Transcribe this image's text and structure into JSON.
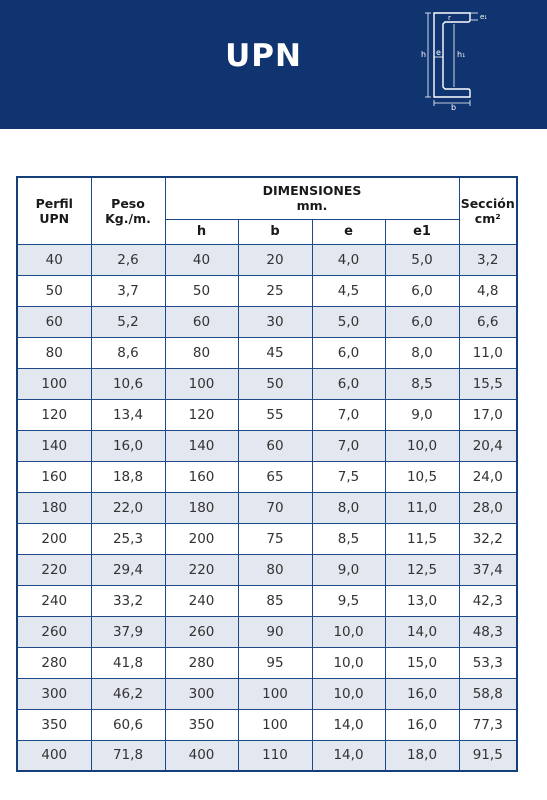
{
  "header": {
    "title": "UPN",
    "diagram_labels": {
      "e1": "e₁",
      "r": "r",
      "h": "h",
      "e": "e",
      "h1": "h₁",
      "b": "b"
    }
  },
  "table": {
    "col_perfil_line1": "Perfil",
    "col_perfil_line2": "UPN",
    "col_peso_line1": "Peso",
    "col_peso_line2": "Kg./m.",
    "dimensiones_line1": "DIMENSIONES",
    "dimensiones_line2": "mm.",
    "col_seccion_line1": "Sección",
    "col_seccion_line2": "cm²",
    "sub_h": "h",
    "sub_b": "b",
    "sub_e": "e",
    "sub_e1": "e1",
    "rows": [
      [
        "40",
        "2,6",
        "40",
        "20",
        "4,0",
        "5,0",
        "3,2"
      ],
      [
        "50",
        "3,7",
        "50",
        "25",
        "4,5",
        "6,0",
        "4,8"
      ],
      [
        "60",
        "5,2",
        "60",
        "30",
        "5,0",
        "6,0",
        "6,6"
      ],
      [
        "80",
        "8,6",
        "80",
        "45",
        "6,0",
        "8,0",
        "11,0"
      ],
      [
        "100",
        "10,6",
        "100",
        "50",
        "6,0",
        "8,5",
        "15,5"
      ],
      [
        "120",
        "13,4",
        "120",
        "55",
        "7,0",
        "9,0",
        "17,0"
      ],
      [
        "140",
        "16,0",
        "140",
        "60",
        "7,0",
        "10,0",
        "20,4"
      ],
      [
        "160",
        "18,8",
        "160",
        "65",
        "7,5",
        "10,5",
        "24,0"
      ],
      [
        "180",
        "22,0",
        "180",
        "70",
        "8,0",
        "11,0",
        "28,0"
      ],
      [
        "200",
        "25,3",
        "200",
        "75",
        "8,5",
        "11,5",
        "32,2"
      ],
      [
        "220",
        "29,4",
        "220",
        "80",
        "9,0",
        "12,5",
        "37,4"
      ],
      [
        "240",
        "33,2",
        "240",
        "85",
        "9,5",
        "13,0",
        "42,3"
      ],
      [
        "260",
        "37,9",
        "260",
        "90",
        "10,0",
        "14,0",
        "48,3"
      ],
      [
        "280",
        "41,8",
        "280",
        "95",
        "10,0",
        "15,0",
        "53,3"
      ],
      [
        "300",
        "46,2",
        "300",
        "100",
        "10,0",
        "16,0",
        "58,8"
      ],
      [
        "350",
        "60,6",
        "350",
        "100",
        "14,0",
        "16,0",
        "77,3"
      ],
      [
        "400",
        "71,8",
        "400",
        "110",
        "14,0",
        "18,0",
        "91,5"
      ]
    ]
  }
}
